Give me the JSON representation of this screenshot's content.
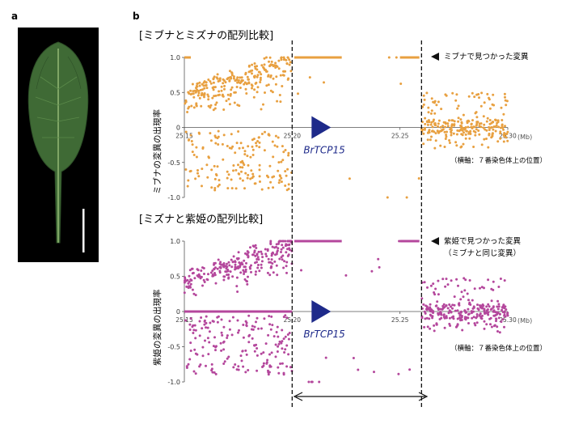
{
  "panel_labels": {
    "a": "a",
    "b": "b"
  },
  "colors": {
    "orange": "#e8a040",
    "magenta": "#b4479c",
    "gene": "#1e2a8a",
    "axis": "#555555"
  },
  "gene": {
    "name": "BrTCP15",
    "position_mb": 25.212
  },
  "boundaries_mb": [
    25.2,
    25.26
  ],
  "chart_data": [
    {
      "type": "scatter",
      "title": "[ミブナとミズナの配列比較]",
      "ylabel": "ミブナの変異の出現率",
      "xunit": "(Mb)",
      "xticks": [
        "25.15",
        "25.20",
        "25.25",
        "25.30"
      ],
      "yticks": [
        "1.0",
        "0.5",
        "0",
        "-0.5",
        "-1.0"
      ],
      "xlim": [
        25.15,
        25.3
      ],
      "ylim": [
        -1.0,
        1.0
      ],
      "annotation": "ミブナで見つかった変異",
      "note": "（横軸：７番染色体上の位置）",
      "color": "#e8a040",
      "regions": [
        {
          "x0": 25.15,
          "x1": 25.2,
          "kind": "scatter_mixed",
          "n": 420,
          "pos_bias": 0.62
        },
        {
          "x0": 25.2,
          "x1": 25.26,
          "kind": "sparse_fixed",
          "n": 18
        },
        {
          "x0": 25.26,
          "x1": 25.3,
          "kind": "scatter_near_zero",
          "n": 260
        }
      ],
      "fixed_lines": [
        {
          "x0": 25.201,
          "x1": 25.223,
          "y": 1.0
        },
        {
          "x0": 25.25,
          "x1": 25.259,
          "y": 1.0
        },
        {
          "x0": 25.15,
          "x1": 25.153,
          "y": 1.0
        }
      ]
    },
    {
      "type": "scatter",
      "title": "[ミズナと紫姫の配列比較]",
      "ylabel": "紫姫の変異の出現率",
      "xunit": "(Mb)",
      "xticks": [
        "25.15",
        "25.20",
        "25.25",
        "25.30"
      ],
      "yticks": [
        "1.0",
        "0.5",
        "0",
        "-0.5",
        "-1.0"
      ],
      "xlim": [
        25.15,
        25.3
      ],
      "ylim": [
        -1.0,
        1.0
      ],
      "annotation": "紫姫で見つかった変異",
      "annotation2": "（ミブナと同じ変異）",
      "note": "（横軸：７番染色体上の位置）",
      "color": "#b4479c",
      "regions": [
        {
          "x0": 25.15,
          "x1": 25.2,
          "kind": "scatter_mixed",
          "n": 440,
          "pos_bias": 0.58
        },
        {
          "x0": 25.2,
          "x1": 25.26,
          "kind": "sparse_fixed",
          "n": 20
        },
        {
          "x0": 25.26,
          "x1": 25.3,
          "kind": "scatter_near_zero",
          "n": 270
        }
      ],
      "fixed_lines": [
        {
          "x0": 25.201,
          "x1": 25.223,
          "y": 1.0
        },
        {
          "x0": 25.25,
          "x1": 25.259,
          "y": 1.0
        },
        {
          "x0": 25.15,
          "x1": 25.2,
          "y": 0.0
        }
      ]
    }
  ]
}
